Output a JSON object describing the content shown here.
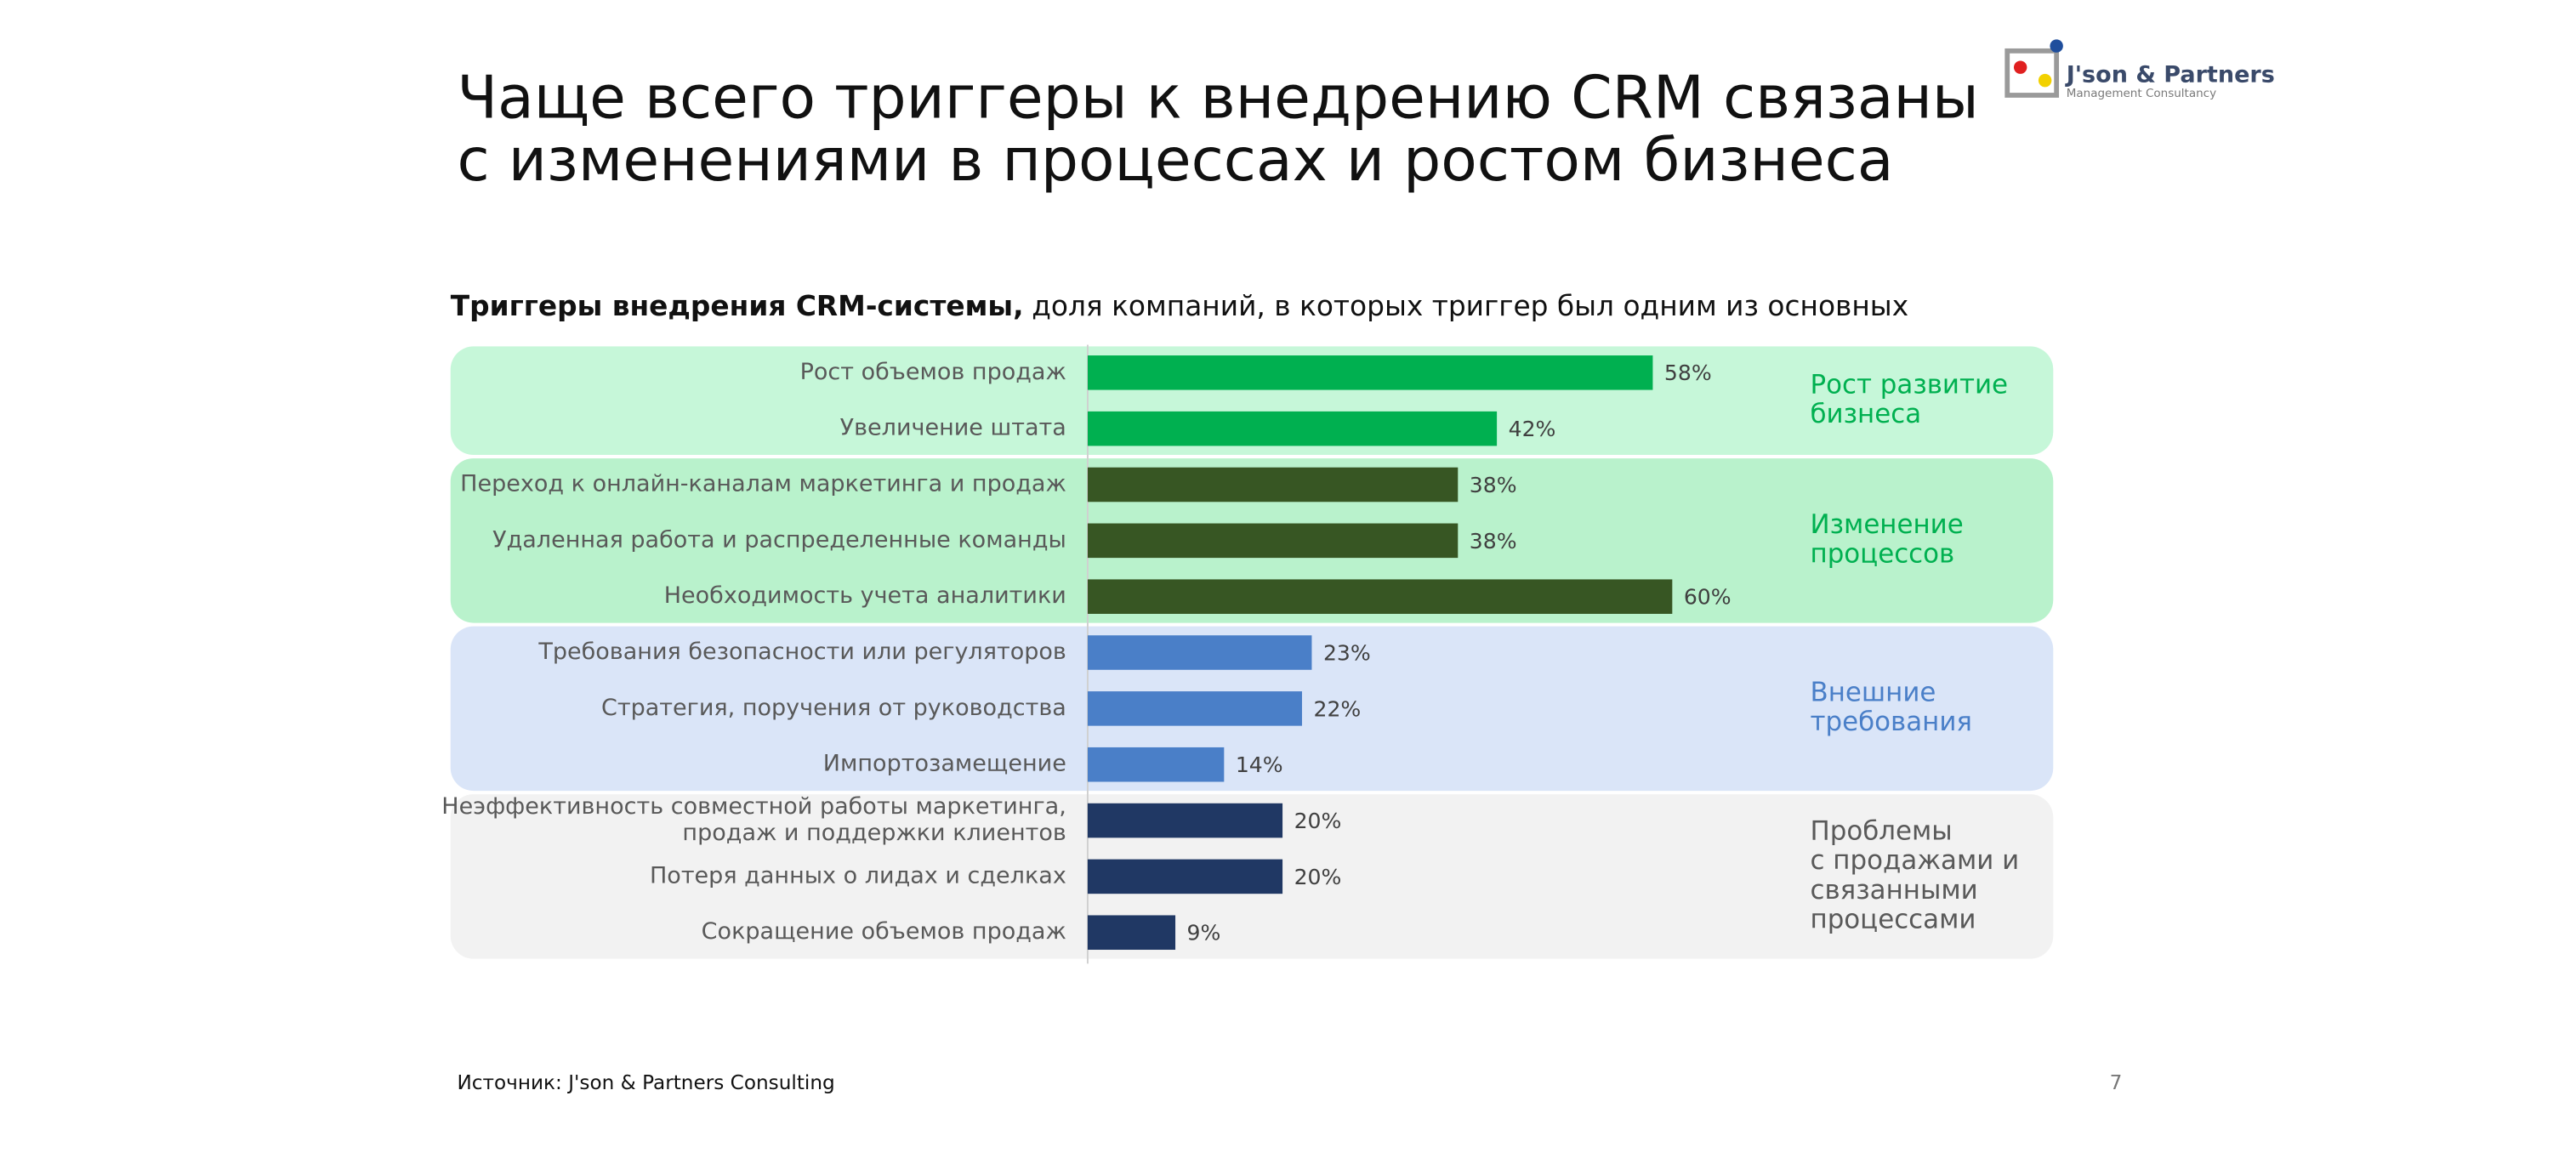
{
  "logo": {
    "name": "J'son & Partners",
    "tagline": "Management Consultancy"
  },
  "chart_data": {
    "type": "grouped-bar",
    "title": [
      "Чаще всего триггеры к внедрению CRM связаны",
      "с изменениями в процессах и ростом бизнеса"
    ],
    "subtitle": {
      "bold": "Триггеры внедрения CRM-системы,",
      "text": "доля компаний, в которых триггер был одним из основных"
    },
    "groups": [
      {
        "name": [
          "Рост  развитие",
          "бизнеса"
        ],
        "color": "#00b050",
        "background": "#c6f7d9",
        "label_color": "#00b050",
        "categories": [
          "Рост объемов продаж",
          "Увеличение штата"
        ],
        "values": [
          58,
          42
        ],
        "value_labels": [
          "58%",
          "42%"
        ]
      },
      {
        "name": [
          "Изменение",
          "процессов"
        ],
        "color": "#375623",
        "background": "#b9f2cc",
        "label_color": "#00b050",
        "categories": [
          "Переход к онлайн-каналам маркетинга и продаж",
          "Удаленная работа и распределенные команды",
          "Необходимость учета аналитики"
        ],
        "values": [
          38,
          38,
          60
        ],
        "value_labels": [
          "38%",
          "38%",
          "60%"
        ]
      },
      {
        "name": [
          "Внешние",
          "требования"
        ],
        "color": "#4a7fc8",
        "background": "#dae5f8",
        "label_color": "#4a7fc8",
        "categories": [
          "Требования безопасности или регуляторов",
          "Стратегия, поручения от руководства",
          "Импортозамещение"
        ],
        "values": [
          23,
          22,
          14
        ],
        "value_labels": [
          "23%",
          "22%",
          "14%"
        ]
      },
      {
        "name": [
          "Проблемы",
          "с продажами и",
          "связанными",
          "процессами"
        ],
        "color": "#203864",
        "background": "#f2f2f2",
        "label_color": "#595959",
        "categories": [
          [
            "Неэффективность совместной работы маркетинга,",
            "продаж и поддержки клиентов"
          ],
          "Потеря данных о лидах и сделках",
          "Сокращение объемов продаж"
        ],
        "values": [
          20,
          20,
          9
        ],
        "value_labels": [
          "20%",
          "20%",
          "9%"
        ]
      }
    ]
  },
  "footer": {
    "source": "Источник: J'son & Partners Consulting",
    "page_number": 7
  }
}
